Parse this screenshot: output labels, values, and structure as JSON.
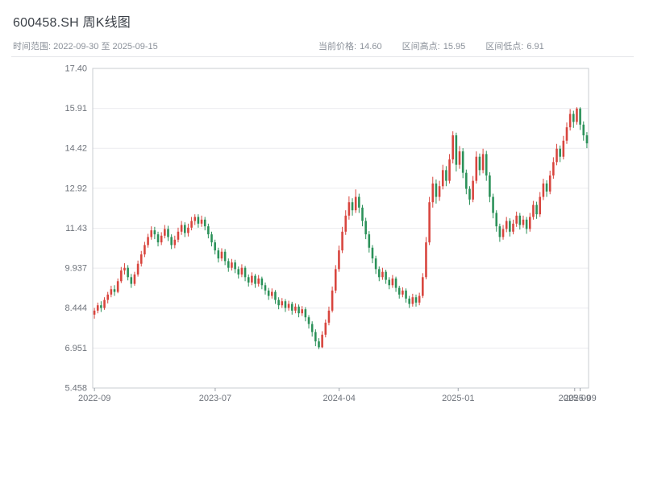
{
  "header": {
    "title": "600458.SH 周K线图",
    "time_label": "时间范围:",
    "time_value": "2022-09-30 至 2025-09-15",
    "stats": {
      "current": {
        "label": "当前价格:",
        "value": "14.60"
      },
      "high": {
        "label": "区间高点:",
        "value": "15.95"
      },
      "low": {
        "label": "区间低点:",
        "value": "6.91"
      }
    }
  },
  "chart_data": {
    "type": "candlestick",
    "title": "600458.SH 周K线图",
    "xlabel": "",
    "ylabel": "",
    "ylim": [
      5.458,
      17.4
    ],
    "grid": true,
    "up_color": "#d8453e",
    "down_color": "#2b9159",
    "axis_text_color": "#6e737b",
    "grid_color": "#ececef",
    "border_color": "#c8ccd2",
    "y_ticks": [
      {
        "label": "17.40",
        "value": 17.4
      },
      {
        "label": "15.91",
        "value": 15.907
      },
      {
        "label": "14.42",
        "value": 14.415
      },
      {
        "label": "12.92",
        "value": 12.922
      },
      {
        "label": "11.43",
        "value": 11.429
      },
      {
        "label": "9.937",
        "value": 9.937
      },
      {
        "label": "8.444",
        "value": 8.444
      },
      {
        "label": "6.951",
        "value": 6.951
      },
      {
        "label": "5.458",
        "value": 5.458
      }
    ],
    "x_ticks": [
      {
        "label": "2022-09",
        "f": 0.0035
      },
      {
        "label": "2023-07",
        "f": 0.247
      },
      {
        "label": "2024-04",
        "f": 0.497
      },
      {
        "label": "2025-01",
        "f": 0.737
      },
      {
        "label": "2025-09",
        "f": 0.972
      },
      {
        "label": "2025-09",
        "f": 0.983
      }
    ],
    "candle_format": [
      "open",
      "close",
      "low",
      "high"
    ],
    "candles": [
      [
        8.2,
        8.35,
        8.05,
        8.45
      ],
      [
        8.35,
        8.55,
        8.25,
        8.65
      ],
      [
        8.55,
        8.45,
        8.3,
        8.7
      ],
      [
        8.45,
        8.75,
        8.38,
        8.85
      ],
      [
        8.75,
        8.95,
        8.62,
        9.05
      ],
      [
        8.95,
        9.15,
        8.85,
        9.28
      ],
      [
        9.15,
        9.05,
        8.9,
        9.3
      ],
      [
        9.05,
        9.45,
        9.0,
        9.55
      ],
      [
        9.45,
        9.85,
        9.38,
        9.98
      ],
      [
        9.85,
        9.95,
        9.7,
        10.12
      ],
      [
        9.95,
        9.6,
        9.48,
        10.05
      ],
      [
        9.6,
        9.35,
        9.2,
        9.72
      ],
      [
        9.35,
        9.7,
        9.28,
        9.8
      ],
      [
        9.7,
        10.1,
        9.62,
        10.22
      ],
      [
        10.1,
        10.45,
        10.0,
        10.58
      ],
      [
        10.45,
        10.8,
        10.35,
        10.92
      ],
      [
        10.8,
        11.1,
        10.7,
        11.22
      ],
      [
        11.1,
        11.35,
        11.0,
        11.5
      ],
      [
        11.35,
        11.2,
        11.02,
        11.48
      ],
      [
        11.2,
        10.9,
        10.75,
        11.3
      ],
      [
        10.9,
        11.15,
        10.8,
        11.28
      ],
      [
        11.15,
        11.4,
        11.05,
        11.55
      ],
      [
        11.4,
        11.1,
        10.95,
        11.52
      ],
      [
        11.1,
        10.8,
        10.65,
        11.2
      ],
      [
        10.8,
        11.0,
        10.68,
        11.15
      ],
      [
        11.0,
        11.3,
        10.9,
        11.45
      ],
      [
        11.3,
        11.55,
        11.18,
        11.7
      ],
      [
        11.55,
        11.25,
        11.1,
        11.65
      ],
      [
        11.25,
        11.45,
        11.12,
        11.6
      ],
      [
        11.45,
        11.7,
        11.35,
        11.85
      ],
      [
        11.7,
        11.85,
        11.55,
        11.95
      ],
      [
        11.85,
        11.6,
        11.45,
        11.95
      ],
      [
        11.6,
        11.75,
        11.48,
        11.9
      ],
      [
        11.75,
        11.5,
        11.35,
        11.85
      ],
      [
        11.5,
        11.2,
        11.05,
        11.6
      ],
      [
        11.2,
        10.9,
        10.75,
        11.3
      ],
      [
        10.9,
        10.6,
        10.45,
        11.0
      ],
      [
        10.6,
        10.3,
        10.15,
        10.7
      ],
      [
        10.3,
        10.55,
        10.2,
        10.68
      ],
      [
        10.55,
        10.2,
        10.05,
        10.65
      ],
      [
        10.2,
        9.95,
        9.8,
        10.3
      ],
      [
        9.95,
        10.15,
        9.85,
        10.28
      ],
      [
        10.15,
        9.9,
        9.75,
        10.25
      ],
      [
        9.9,
        9.7,
        9.55,
        10.0
      ],
      [
        9.7,
        9.95,
        9.6,
        10.08
      ],
      [
        9.95,
        9.6,
        9.45,
        10.02
      ],
      [
        9.6,
        9.4,
        9.25,
        9.7
      ],
      [
        9.4,
        9.65,
        9.3,
        9.78
      ],
      [
        9.65,
        9.35,
        9.2,
        9.72
      ],
      [
        9.35,
        9.55,
        9.25,
        9.68
      ],
      [
        9.55,
        9.3,
        9.15,
        9.62
      ],
      [
        9.3,
        9.1,
        8.95,
        9.4
      ],
      [
        9.1,
        8.9,
        8.75,
        9.2
      ],
      [
        8.9,
        9.05,
        8.8,
        9.18
      ],
      [
        9.05,
        8.75,
        8.6,
        9.12
      ],
      [
        8.75,
        8.55,
        8.4,
        8.85
      ],
      [
        8.55,
        8.7,
        8.45,
        8.82
      ],
      [
        8.7,
        8.45,
        8.3,
        8.78
      ],
      [
        8.45,
        8.6,
        8.35,
        8.72
      ],
      [
        8.6,
        8.35,
        8.2,
        8.68
      ],
      [
        8.35,
        8.5,
        8.25,
        8.62
      ],
      [
        8.5,
        8.25,
        8.1,
        8.58
      ],
      [
        8.25,
        8.4,
        8.15,
        8.52
      ],
      [
        8.4,
        8.1,
        7.95,
        8.48
      ],
      [
        8.1,
        7.85,
        7.68,
        8.18
      ],
      [
        7.85,
        7.55,
        7.38,
        7.95
      ],
      [
        7.55,
        7.2,
        7.02,
        7.65
      ],
      [
        7.2,
        6.98,
        6.91,
        7.32
      ],
      [
        6.98,
        7.45,
        6.95,
        7.58
      ],
      [
        7.45,
        7.9,
        7.35,
        8.02
      ],
      [
        7.9,
        8.35,
        7.8,
        8.5
      ],
      [
        8.35,
        9.1,
        8.28,
        9.25
      ],
      [
        9.1,
        9.9,
        9.0,
        10.05
      ],
      [
        9.9,
        10.6,
        9.8,
        10.78
      ],
      [
        10.6,
        11.3,
        10.5,
        11.48
      ],
      [
        11.3,
        11.9,
        11.18,
        12.1
      ],
      [
        11.9,
        12.4,
        11.75,
        12.62
      ],
      [
        12.4,
        12.1,
        11.9,
        12.55
      ],
      [
        12.1,
        12.6,
        12.0,
        12.88
      ],
      [
        12.6,
        12.2,
        12.0,
        12.72
      ],
      [
        12.2,
        11.7,
        11.5,
        12.3
      ],
      [
        11.7,
        11.2,
        11.02,
        11.82
      ],
      [
        11.2,
        10.7,
        10.52,
        11.32
      ],
      [
        10.7,
        10.3,
        10.12,
        10.8
      ],
      [
        10.3,
        9.9,
        9.72,
        10.4
      ],
      [
        9.9,
        9.6,
        9.45,
        10.0
      ],
      [
        9.6,
        9.8,
        9.5,
        9.95
      ],
      [
        9.8,
        9.5,
        9.35,
        9.88
      ],
      [
        9.5,
        9.3,
        9.15,
        9.6
      ],
      [
        9.3,
        9.55,
        9.2,
        9.68
      ],
      [
        9.55,
        9.2,
        9.05,
        9.62
      ],
      [
        9.2,
        8.95,
        8.8,
        9.28
      ],
      [
        8.95,
        9.1,
        8.85,
        9.22
      ],
      [
        9.1,
        8.8,
        8.65,
        9.18
      ],
      [
        8.8,
        8.6,
        8.45,
        8.9
      ],
      [
        8.6,
        8.85,
        8.5,
        8.98
      ],
      [
        8.85,
        8.65,
        8.5,
        8.95
      ],
      [
        8.65,
        8.9,
        8.55,
        9.02
      ],
      [
        8.9,
        9.6,
        8.82,
        9.75
      ],
      [
        9.6,
        10.9,
        9.52,
        11.1
      ],
      [
        10.9,
        12.4,
        10.8,
        12.6
      ],
      [
        12.4,
        13.1,
        12.2,
        13.35
      ],
      [
        13.1,
        12.6,
        12.35,
        13.25
      ],
      [
        12.6,
        13.0,
        12.45,
        13.2
      ],
      [
        13.0,
        13.6,
        12.88,
        13.8
      ],
      [
        13.6,
        13.2,
        13.0,
        13.75
      ],
      [
        13.2,
        14.0,
        13.1,
        14.2
      ],
      [
        14.0,
        14.9,
        13.85,
        15.05
      ],
      [
        14.9,
        13.8,
        13.55,
        15.0
      ],
      [
        13.8,
        14.3,
        13.65,
        14.5
      ],
      [
        14.3,
        13.5,
        13.3,
        14.42
      ],
      [
        13.5,
        12.9,
        12.7,
        13.62
      ],
      [
        12.9,
        12.5,
        12.3,
        13.0
      ],
      [
        12.5,
        13.2,
        12.4,
        13.38
      ],
      [
        13.2,
        14.1,
        13.1,
        14.3
      ],
      [
        14.1,
        13.6,
        13.4,
        14.22
      ],
      [
        13.6,
        14.2,
        13.48,
        14.4
      ],
      [
        14.2,
        13.4,
        13.2,
        14.32
      ],
      [
        13.4,
        12.6,
        12.4,
        13.52
      ],
      [
        12.6,
        12.0,
        11.8,
        12.72
      ],
      [
        12.0,
        11.5,
        11.3,
        12.1
      ],
      [
        11.5,
        11.1,
        10.92,
        11.6
      ],
      [
        11.1,
        11.4,
        11.0,
        11.55
      ],
      [
        11.4,
        11.7,
        11.28,
        11.85
      ],
      [
        11.7,
        11.3,
        11.12,
        11.8
      ],
      [
        11.3,
        11.6,
        11.2,
        11.75
      ],
      [
        11.6,
        11.9,
        11.48,
        12.05
      ],
      [
        11.9,
        11.55,
        11.38,
        12.0
      ],
      [
        11.55,
        11.75,
        11.45,
        11.9
      ],
      [
        11.75,
        11.4,
        11.22,
        11.85
      ],
      [
        11.4,
        11.85,
        11.3,
        12.0
      ],
      [
        11.85,
        12.3,
        11.75,
        12.45
      ],
      [
        12.3,
        11.95,
        11.78,
        12.42
      ],
      [
        11.95,
        12.6,
        11.85,
        12.78
      ],
      [
        12.6,
        13.1,
        12.48,
        13.28
      ],
      [
        13.1,
        12.8,
        12.6,
        13.22
      ],
      [
        12.8,
        13.4,
        12.7,
        13.58
      ],
      [
        13.4,
        13.9,
        13.28,
        14.08
      ],
      [
        13.9,
        14.4,
        13.78,
        14.58
      ],
      [
        14.4,
        14.1,
        13.9,
        14.52
      ],
      [
        14.1,
        14.7,
        14.0,
        14.88
      ],
      [
        14.7,
        15.2,
        14.58,
        15.38
      ],
      [
        15.2,
        15.7,
        15.08,
        15.88
      ],
      [
        15.7,
        15.4,
        15.18,
        15.82
      ],
      [
        15.4,
        15.9,
        15.3,
        15.95
      ],
      [
        15.9,
        15.3,
        15.1,
        15.95
      ],
      [
        15.3,
        14.9,
        14.7,
        15.42
      ],
      [
        14.9,
        14.6,
        14.42,
        15.02
      ]
    ]
  }
}
